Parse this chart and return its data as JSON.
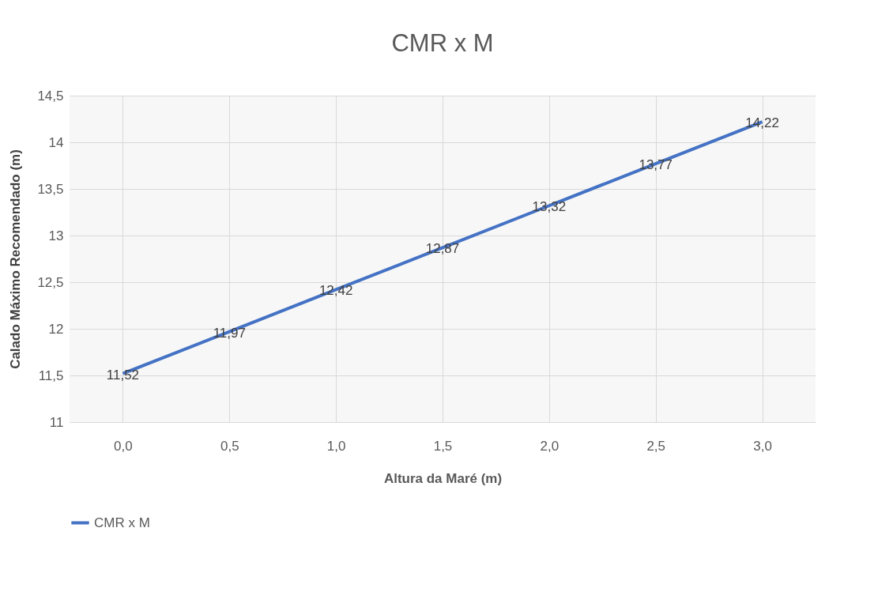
{
  "chart_data": {
    "type": "line",
    "title": "CMR x M",
    "xlabel": "Altura da Maré (m)",
    "ylabel": "Calado Máximo Recomendado (m)",
    "categories": [
      "0,0",
      "0,5",
      "1,0",
      "1,5",
      "2,0",
      "2,5",
      "3,0"
    ],
    "series": [
      {
        "name": "CMR x M",
        "color": "#4472c4",
        "values": [
          11.52,
          11.97,
          12.42,
          12.87,
          13.32,
          13.77,
          14.22
        ],
        "value_labels": [
          "11,52",
          "11,97",
          "12,42",
          "12,87",
          "13,32",
          "13,77",
          "14,22"
        ]
      }
    ],
    "ylim": [
      11,
      14.5
    ],
    "yticks": [
      11,
      {
        "value": 11.5,
        "label": "11,5"
      },
      14,
      {
        "value": 12.5,
        "label": "12,5"
      },
      12,
      {
        "value": 13.5,
        "label": "13,5"
      },
      13,
      {
        "value": 14.5,
        "label": "14,5"
      }
    ],
    "grid": true,
    "legend": "bottom",
    "marker": "none",
    "line_style": "solid"
  }
}
